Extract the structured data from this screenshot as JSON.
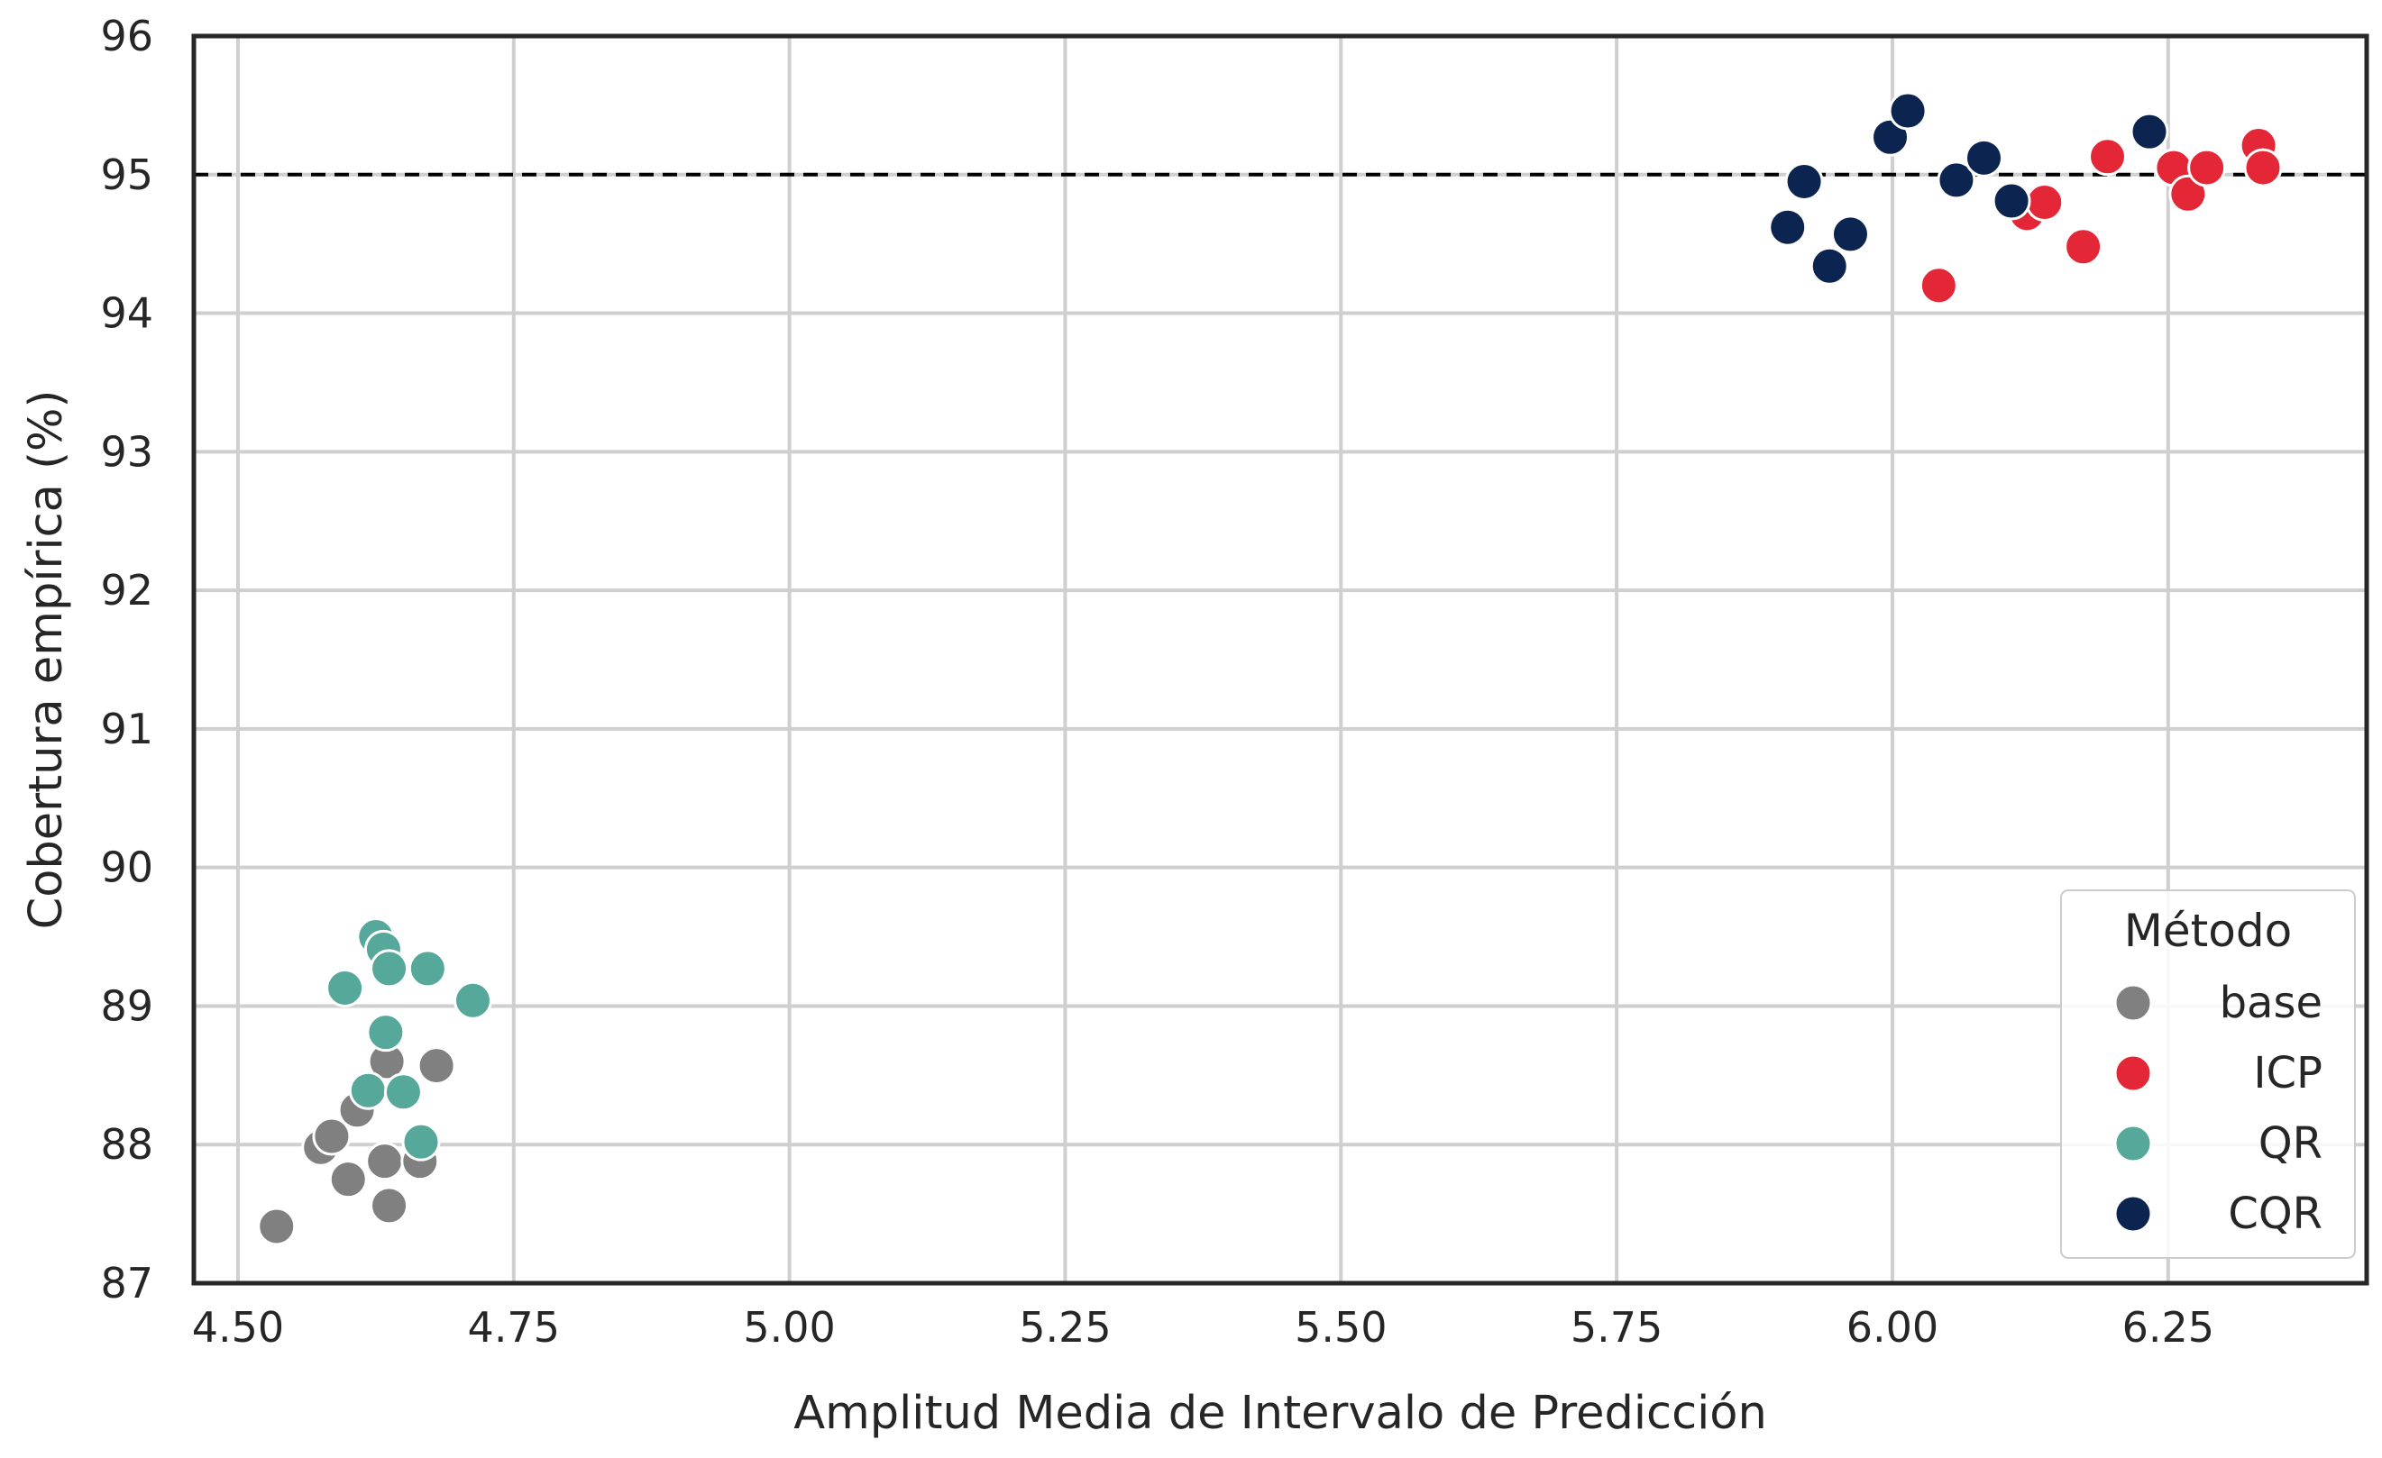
{
  "chart_data": {
    "type": "scatter",
    "title": "",
    "xlabel": "Amplitud Media de Intervalo de Predicción",
    "ylabel": "Cobertura empírica (%)",
    "xlim": [
      4.46,
      6.43
    ],
    "ylim": [
      87,
      96
    ],
    "xticks": [
      "4.50",
      "4.75",
      "5.00",
      "5.25",
      "5.50",
      "5.75",
      "6.00",
      "6.25"
    ],
    "yticks": [
      "87",
      "88",
      "89",
      "90",
      "91",
      "92",
      "93",
      "94",
      "95",
      "96"
    ],
    "grid": true,
    "reference_line": {
      "y": 95,
      "style": "dashed",
      "color": "#000000"
    },
    "legend": {
      "title": "Método",
      "position": "lower-right"
    },
    "series": [
      {
        "name": "base",
        "color": "#808080",
        "points": [
          [
            4.535,
            87.41
          ],
          [
            4.575,
            87.98
          ],
          [
            4.585,
            88.06
          ],
          [
            4.6,
            87.75
          ],
          [
            4.608,
            88.25
          ],
          [
            4.633,
            87.88
          ],
          [
            4.635,
            88.6
          ],
          [
            4.637,
            87.56
          ],
          [
            4.665,
            87.88
          ],
          [
            4.68,
            88.57
          ]
        ]
      },
      {
        "name": "ICP",
        "color": "#E32737",
        "points": [
          [
            6.042,
            94.2
          ],
          [
            6.122,
            94.72
          ],
          [
            6.138,
            94.8
          ],
          [
            6.173,
            94.48
          ],
          [
            6.195,
            95.13
          ],
          [
            6.255,
            95.05
          ],
          [
            6.268,
            94.86
          ],
          [
            6.285,
            95.05
          ],
          [
            6.332,
            95.21
          ],
          [
            6.336,
            95.05
          ]
        ]
      },
      {
        "name": "QR",
        "color": "#56A89A",
        "points": [
          [
            4.597,
            89.13
          ],
          [
            4.618,
            88.39
          ],
          [
            4.625,
            89.5
          ],
          [
            4.632,
            89.41
          ],
          [
            4.634,
            88.81
          ],
          [
            4.637,
            89.27
          ],
          [
            4.65,
            88.38
          ],
          [
            4.666,
            88.02
          ],
          [
            4.672,
            89.27
          ],
          [
            4.713,
            89.04
          ]
        ]
      },
      {
        "name": "CQR",
        "color": "#0C2550",
        "points": [
          [
            5.905,
            94.62
          ],
          [
            5.92,
            94.95
          ],
          [
            5.943,
            94.34
          ],
          [
            5.962,
            94.57
          ],
          [
            5.998,
            95.27
          ],
          [
            6.014,
            95.46
          ],
          [
            6.058,
            94.96
          ],
          [
            6.083,
            95.12
          ],
          [
            6.108,
            94.81
          ],
          [
            6.233,
            95.31
          ]
        ]
      }
    ]
  }
}
